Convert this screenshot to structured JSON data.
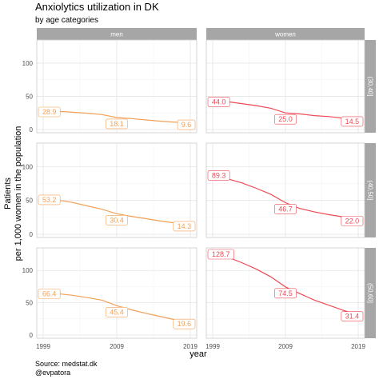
{
  "title": "Anxiolytics utilization in DK",
  "subtitle": "by age categories",
  "xlabel": "year",
  "ylabel_line1": "Patients",
  "ylabel_line2": "per 1,000 women in the population",
  "caption_line1": "Source: medstat.dk",
  "caption_line2": "@evpatora",
  "colors": {
    "men": "#f2a057",
    "women": "#ee4a55",
    "strip": "#a6a6a6",
    "panel_border": "#cccccc",
    "grid_major": "#e5e5e5",
    "grid_minor": "#f3f3f3"
  },
  "chart_data": {
    "type": "line",
    "facet_columns": [
      "men",
      "women"
    ],
    "facet_rows": [
      "(30,40]",
      "(40,50]",
      "(50,60]"
    ],
    "x_ticks": [
      1999,
      2009,
      2019
    ],
    "y_ticks": [
      0,
      50,
      100
    ],
    "xlim": [
      1999,
      2019
    ],
    "ylim": [
      0,
      130
    ],
    "grid": true,
    "panels": [
      {
        "column": "men",
        "row": "(30,40]",
        "x": [
          1999,
          2001,
          2003,
          2005,
          2007,
          2009,
          2011,
          2013,
          2015,
          2017,
          2019
        ],
        "y": [
          28.9,
          27.5,
          26.0,
          24.5,
          22.5,
          18.1,
          16.5,
          14.5,
          12.5,
          11.0,
          9.6
        ],
        "labels": [
          {
            "x": 1999,
            "y": 28.9,
            "text": "28.9"
          },
          {
            "x": 2009,
            "y": 18.1,
            "text": "18.1"
          },
          {
            "x": 2019,
            "y": 9.6,
            "text": "9.6"
          }
        ]
      },
      {
        "column": "women",
        "row": "(30,40]",
        "x": [
          1999,
          2001,
          2003,
          2005,
          2007,
          2009,
          2011,
          2013,
          2015,
          2017,
          2019
        ],
        "y": [
          44.0,
          42.0,
          39.0,
          36.0,
          32.0,
          25.0,
          23.5,
          21.0,
          19.5,
          17.0,
          14.5
        ],
        "labels": [
          {
            "x": 1999,
            "y": 44.0,
            "text": "44.0"
          },
          {
            "x": 2009,
            "y": 25.0,
            "text": "25.0"
          },
          {
            "x": 2019,
            "y": 14.5,
            "text": "14.5"
          }
        ]
      },
      {
        "column": "men",
        "row": "(40,50]",
        "x": [
          1999,
          2001,
          2003,
          2005,
          2007,
          2009,
          2011,
          2013,
          2015,
          2017,
          2019
        ],
        "y": [
          53.2,
          50.5,
          47.0,
          42.0,
          37.0,
          30.4,
          26.5,
          23.0,
          19.5,
          16.5,
          14.3
        ],
        "labels": [
          {
            "x": 1999,
            "y": 53.2,
            "text": "53.2"
          },
          {
            "x": 2009,
            "y": 30.4,
            "text": "30.4"
          },
          {
            "x": 2019,
            "y": 14.3,
            "text": "14.3"
          }
        ]
      },
      {
        "column": "women",
        "row": "(40,50]",
        "x": [
          1999,
          2001,
          2003,
          2005,
          2007,
          2009,
          2011,
          2013,
          2015,
          2017,
          2019
        ],
        "y": [
          89.3,
          82.0,
          76.0,
          68.0,
          59.0,
          46.7,
          38.0,
          33.0,
          29.0,
          25.5,
          22.0
        ],
        "labels": [
          {
            "x": 1999,
            "y": 89.3,
            "text": "89.3"
          },
          {
            "x": 2009,
            "y": 46.7,
            "text": "46.7"
          },
          {
            "x": 2019,
            "y": 22.0,
            "text": "22.0"
          }
        ]
      },
      {
        "column": "men",
        "row": "(50,60]",
        "x": [
          1999,
          2001,
          2003,
          2005,
          2007,
          2009,
          2011,
          2013,
          2015,
          2017,
          2019
        ],
        "y": [
          66.4,
          64.0,
          61.5,
          58.0,
          54.0,
          45.4,
          39.0,
          33.5,
          28.5,
          23.5,
          19.6
        ],
        "labels": [
          {
            "x": 1999,
            "y": 66.4,
            "text": "66.4"
          },
          {
            "x": 2009,
            "y": 45.4,
            "text": "45.4"
          },
          {
            "x": 2019,
            "y": 19.6,
            "text": "19.6"
          }
        ]
      },
      {
        "column": "women",
        "row": "(50,60]",
        "x": [
          1999,
          2001,
          2003,
          2005,
          2007,
          2009,
          2011,
          2013,
          2015,
          2017,
          2019
        ],
        "y": [
          128.7,
          121.0,
          112.0,
          102.0,
          90.0,
          74.5,
          64.0,
          54.0,
          46.0,
          38.0,
          31.4
        ],
        "labels": [
          {
            "x": 1999,
            "y": 128.7,
            "text": "128.7"
          },
          {
            "x": 2009,
            "y": 74.5,
            "text": "74.5"
          },
          {
            "x": 2019,
            "y": 31.4,
            "text": "31.4"
          }
        ]
      }
    ]
  }
}
